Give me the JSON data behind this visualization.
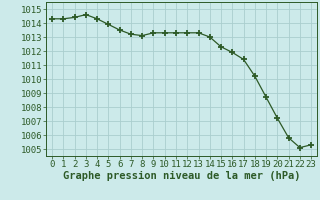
{
  "x": [
    0,
    1,
    2,
    3,
    4,
    5,
    6,
    7,
    8,
    9,
    10,
    11,
    12,
    13,
    14,
    15,
    16,
    17,
    18,
    19,
    20,
    21,
    22,
    23
  ],
  "y": [
    1014.3,
    1014.3,
    1014.4,
    1014.6,
    1014.3,
    1013.9,
    1013.5,
    1013.2,
    1013.1,
    1013.3,
    1013.3,
    1013.3,
    1013.3,
    1013.3,
    1013.0,
    1012.3,
    1011.9,
    1011.4,
    1010.2,
    1008.7,
    1007.2,
    1005.8,
    1005.1,
    1005.3
  ],
  "line_color": "#2d5a27",
  "marker_color": "#2d5a27",
  "bg_color": "#cceaea",
  "grid_color": "#aacece",
  "ylabel_values": [
    1005,
    1006,
    1007,
    1008,
    1009,
    1010,
    1011,
    1012,
    1013,
    1014,
    1015
  ],
  "xlabel_label": "Graphe pression niveau de la mer (hPa)",
  "ylim": [
    1004.5,
    1015.5
  ],
  "xlim": [
    -0.5,
    23.5
  ],
  "label_fontsize": 7.5,
  "tick_fontsize": 6.5
}
